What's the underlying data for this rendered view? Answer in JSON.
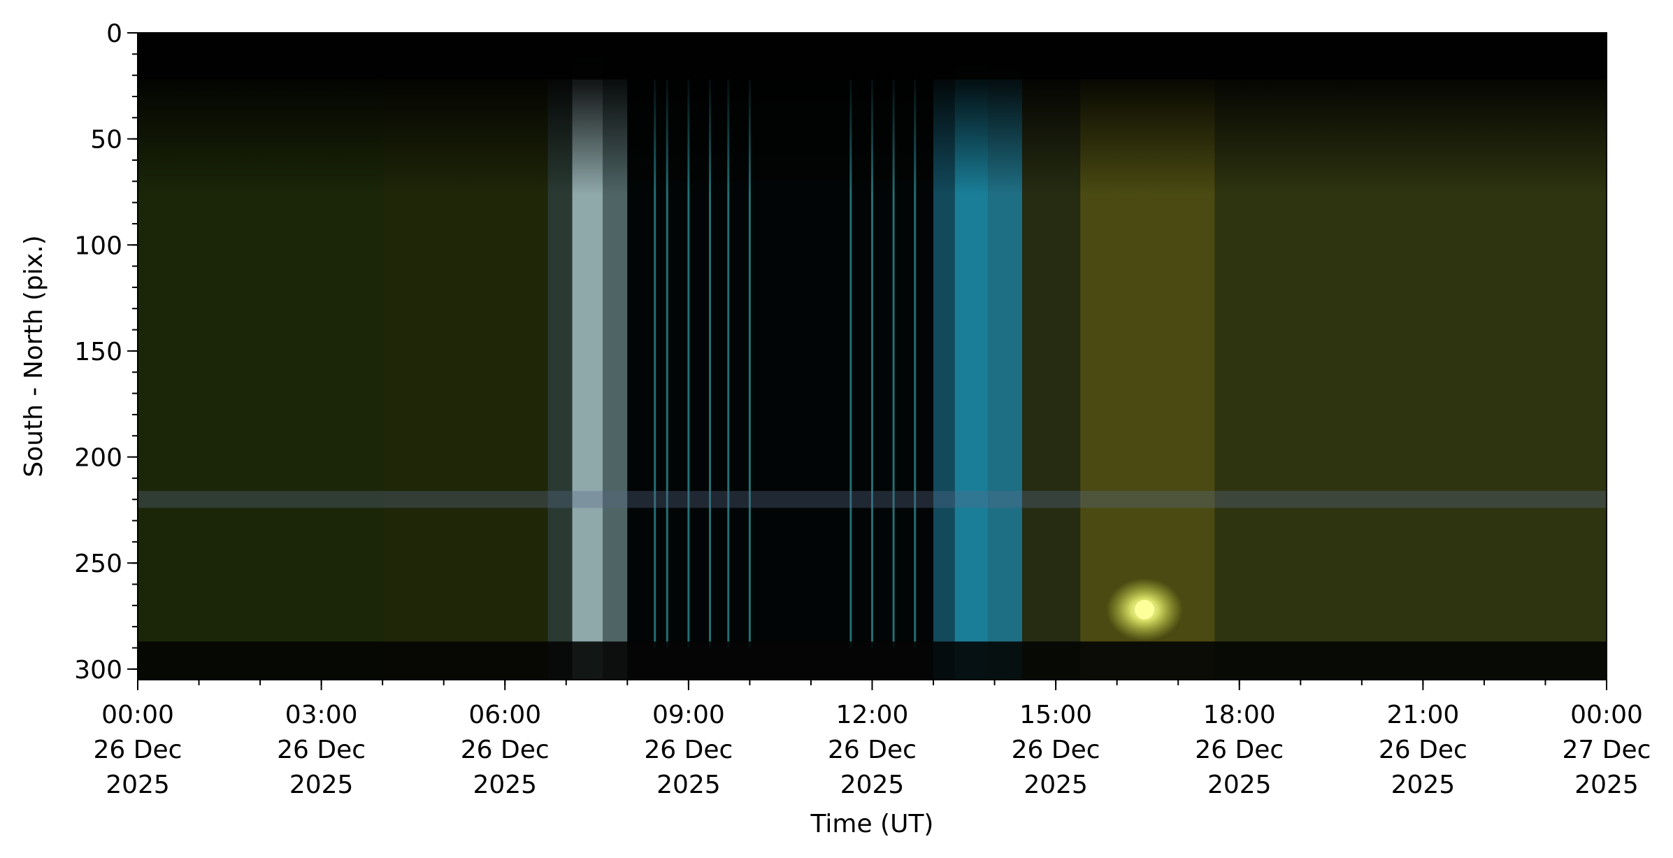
{
  "chart_data": {
    "type": "heatmap",
    "title": "",
    "xlabel": "Time (UT)",
    "ylabel": "South - North (pix.)",
    "x_range": [
      "2025-12-26T00:00",
      "2025-12-27T00:00"
    ],
    "ylim": [
      305,
      0
    ],
    "y_ticks": [
      0,
      50,
      100,
      150,
      200,
      250,
      300
    ],
    "y_minor_step": 10,
    "x_ticks": [
      {
        "line1": "00:00",
        "line2": "26 Dec",
        "line3": "2025"
      },
      {
        "line1": "03:00",
        "line2": "26 Dec",
        "line3": "2025"
      },
      {
        "line1": "06:00",
        "line2": "26 Dec",
        "line3": "2025"
      },
      {
        "line1": "09:00",
        "line2": "26 Dec",
        "line3": "2025"
      },
      {
        "line1": "12:00",
        "line2": "26 Dec",
        "line3": "2025"
      },
      {
        "line1": "15:00",
        "line2": "26 Dec",
        "line3": "2025"
      },
      {
        "line1": "18:00",
        "line2": "26 Dec",
        "line3": "2025"
      },
      {
        "line1": "21:00",
        "line2": "26 Dec",
        "line3": "2025"
      },
      {
        "line1": "00:00",
        "line2": "27 Dec",
        "line3": "2025"
      }
    ],
    "x_tick_hours": [
      0,
      3,
      6,
      9,
      12,
      15,
      18,
      21,
      24
    ],
    "x_minor_step_hours": 1,
    "color_segments": [
      {
        "start_h": 0.0,
        "end_h": 4.0,
        "color": "#1b2608"
      },
      {
        "start_h": 4.0,
        "end_h": 6.7,
        "color": "#1f2608"
      },
      {
        "start_h": 6.7,
        "end_h": 7.1,
        "color": "#2a3a33"
      },
      {
        "start_h": 7.1,
        "end_h": 7.6,
        "color": "#8fa8aa"
      },
      {
        "start_h": 7.6,
        "end_h": 8.0,
        "color": "#4f6465"
      },
      {
        "start_h": 8.0,
        "end_h": 13.0,
        "color": "#020505"
      },
      {
        "start_h": 13.0,
        "end_h": 13.35,
        "color": "#124a5c"
      },
      {
        "start_h": 13.35,
        "end_h": 13.9,
        "color": "#1a7e98"
      },
      {
        "start_h": 13.9,
        "end_h": 14.45,
        "color": "#1f6f84"
      },
      {
        "start_h": 14.45,
        "end_h": 15.4,
        "color": "#262c12"
      },
      {
        "start_h": 15.4,
        "end_h": 17.6,
        "color": "#4a4a12"
      },
      {
        "start_h": 17.6,
        "end_h": 24.0,
        "color": "#2e3410"
      }
    ],
    "cyan_lines_h": [
      8.45,
      8.65,
      9.0,
      9.35,
      9.65,
      10.0,
      11.65,
      12.0,
      12.35,
      12.7
    ],
    "features": [
      {
        "name": "bright-spot",
        "time_h": 16.45,
        "y": 272,
        "color": "#fdff9a"
      },
      {
        "name": "horizontal-band",
        "y": 220,
        "color": "#5a6a8a"
      }
    ]
  }
}
